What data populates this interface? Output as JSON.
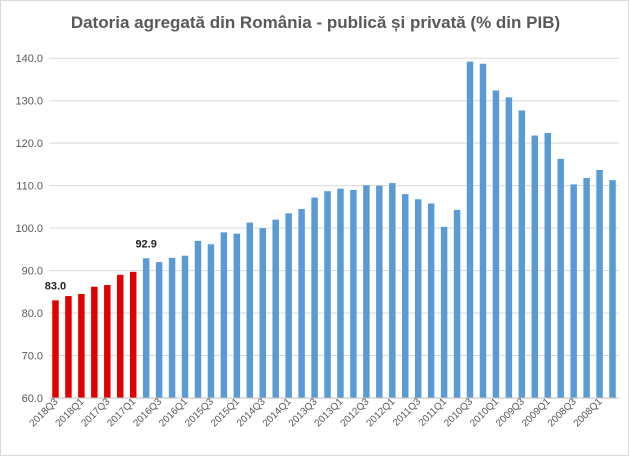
{
  "chart_data": {
    "type": "bar",
    "title": "Datoria agregată din România - publică și privată (% din PIB)",
    "xlabel": "",
    "ylabel": "",
    "ylim": [
      60,
      145
    ],
    "yticks": [
      "60.0",
      "70.0",
      "80.0",
      "90.0",
      "100.0",
      "110.0",
      "120.0",
      "130.0",
      "140.0"
    ],
    "grid": true,
    "legend": "none",
    "colors": {
      "highlight": "#e00000",
      "base": "#5b9bd5",
      "grid": "#d9d9d9"
    },
    "categories": [
      "2018Q3",
      "2018Q2",
      "2018Q1",
      "2017Q4",
      "2017Q3",
      "2017Q2",
      "2017Q1",
      "2016Q4",
      "2016Q3",
      "2016Q2",
      "2016Q1",
      "2015Q4",
      "2015Q3",
      "2015Q2",
      "2015Q1",
      "2014Q4",
      "2014Q3",
      "2014Q2",
      "2014Q1",
      "2013Q4",
      "2013Q3",
      "2013Q2",
      "2013Q1",
      "2012Q4",
      "2012Q3",
      "2012Q2",
      "2012Q1",
      "2011Q4",
      "2011Q3",
      "2011Q2",
      "2011Q1",
      "2010Q4",
      "2010Q3",
      "2010Q2",
      "2010Q1",
      "2009Q4",
      "2009Q3",
      "2009Q2",
      "2009Q1",
      "2008Q4",
      "2008Q3",
      "2008Q2",
      "2008Q1",
      "2007Q4"
    ],
    "visible_category_labels": [
      "2018Q3",
      "2018Q1",
      "2017Q3",
      "2017Q1",
      "2016Q3",
      "2016Q1",
      "2015Q3",
      "2015Q1",
      "2014Q3",
      "2014Q1",
      "2013Q3",
      "2013Q1",
      "2012Q3",
      "2012Q1",
      "2011Q3",
      "2011Q1",
      "2010Q3",
      "2010Q1",
      "2009Q3",
      "2009Q1",
      "2008Q3",
      "2008Q1"
    ],
    "values": [
      83.0,
      84.0,
      84.5,
      86.2,
      86.6,
      89.0,
      89.7,
      92.9,
      92.0,
      93.0,
      93.5,
      97.0,
      96.2,
      99.0,
      98.7,
      101.3,
      100.0,
      102.0,
      103.5,
      104.5,
      107.2,
      108.7,
      109.3,
      109.0,
      110.1,
      110.0,
      110.6,
      108.0,
      106.8,
      105.8,
      100.3,
      104.3,
      139.2,
      138.7,
      132.4,
      130.8,
      127.7,
      121.8,
      122.4,
      116.3,
      110.3,
      111.8,
      113.7,
      111.3
    ],
    "highlight_count": 7,
    "data_labels": [
      {
        "index": 0,
        "text": "83.0"
      },
      {
        "index": 7,
        "text": "92.9"
      }
    ]
  }
}
